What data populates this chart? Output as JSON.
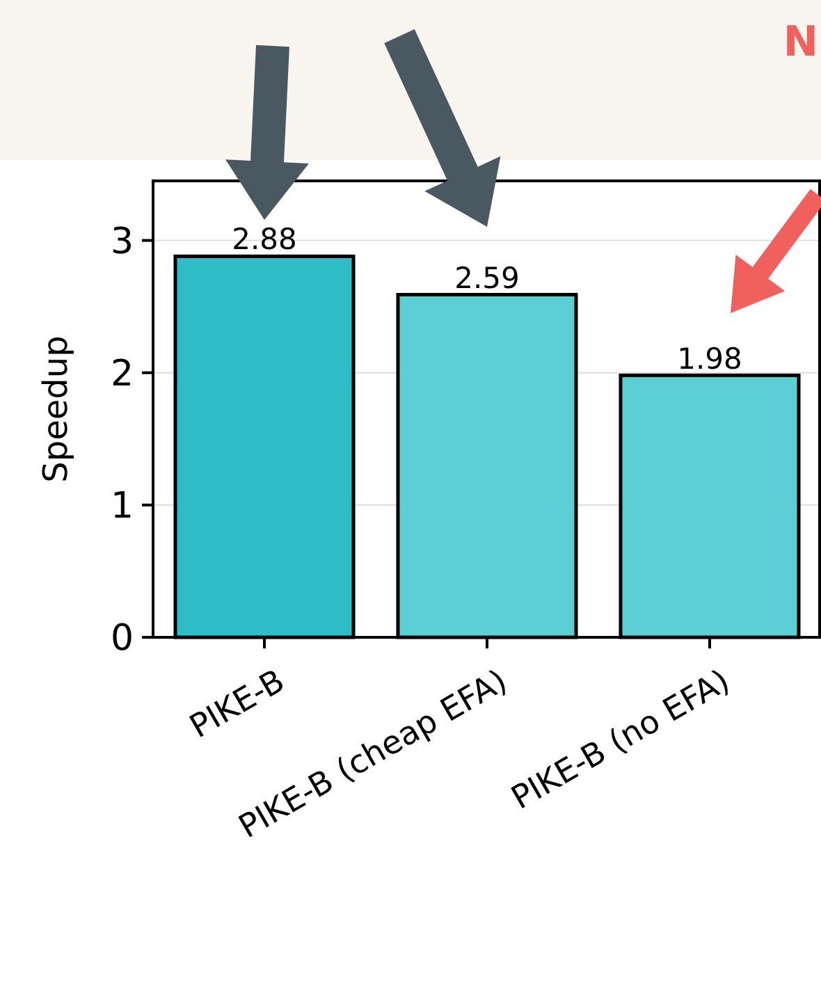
{
  "chart_data": {
    "type": "bar",
    "ylabel": "Speedup",
    "categories": [
      "PIKE-B",
      "PIKE-B (cheap EFA)",
      "PIKE-B (no EFA)"
    ],
    "values": [
      2.88,
      2.59,
      1.98
    ],
    "colors": [
      "#2ebdc6",
      "#5bcfd3",
      "#5bcfd3"
    ],
    "ylim": [
      0,
      3.45
    ],
    "yticks": [
      0,
      1,
      2,
      3
    ],
    "grid": "y",
    "data_labels": true,
    "annotations": [
      "N"
    ]
  }
}
